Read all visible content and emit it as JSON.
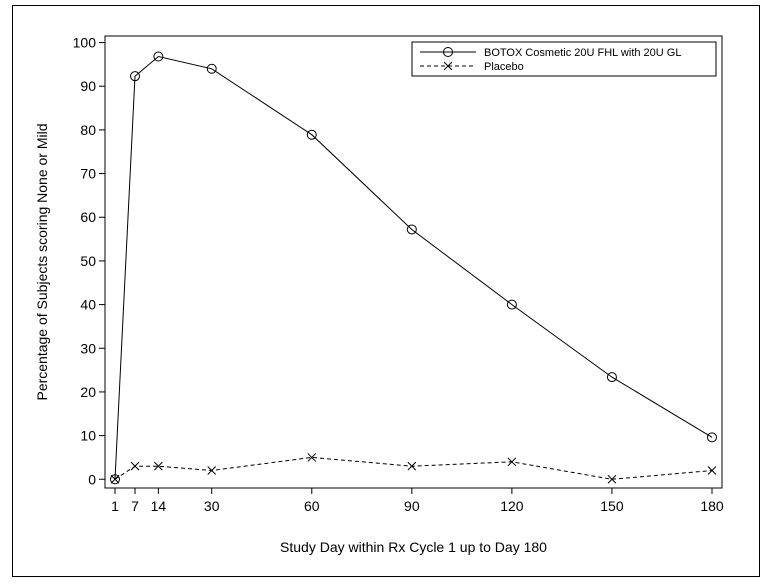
{
  "chart_data": {
    "type": "line",
    "title": "",
    "xlabel": "Study Day within Rx Cycle 1 up to Day 180",
    "ylabel": "Percentage of Subjects scoring None or Mild",
    "x": [
      1,
      7,
      14,
      30,
      60,
      90,
      120,
      150,
      180
    ],
    "x_ticks": [
      1,
      7,
      14,
      30,
      60,
      90,
      120,
      150,
      180
    ],
    "y_ticks": [
      0,
      10,
      20,
      30,
      40,
      50,
      60,
      70,
      80,
      90,
      100
    ],
    "xlim": [
      -2,
      183
    ],
    "ylim": [
      -2,
      101.5
    ],
    "grid": false,
    "legend_position": "top-right",
    "series": [
      {
        "name": "BOTOX Cosmetic 20U FHL with 20U GL",
        "values": [
          0,
          92.3,
          96.8,
          94,
          78.9,
          57.2,
          40,
          23.4,
          9.6
        ],
        "marker": "circle",
        "line_style": "solid",
        "color": "#000000"
      },
      {
        "name": "Placebo",
        "values": [
          0,
          3,
          3,
          2,
          5,
          3,
          4,
          0,
          2
        ],
        "marker": "x",
        "line_style": "dashed",
        "color": "#000000"
      }
    ]
  }
}
